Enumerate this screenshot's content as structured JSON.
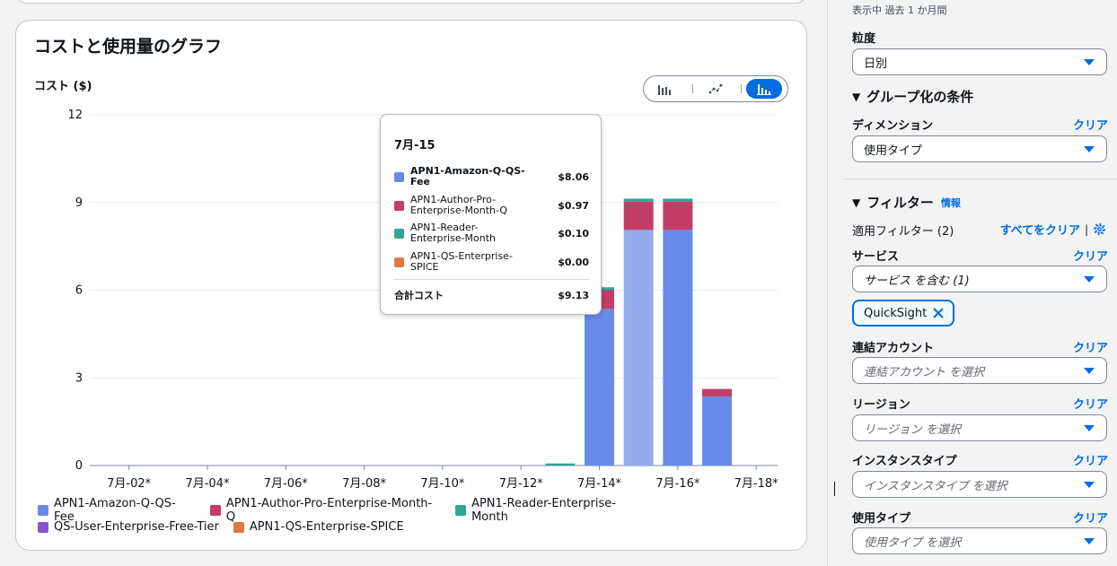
{
  "chart_card": {
    "title": "コストと使用量のグラフ",
    "ylabel": "コスト ($)"
  },
  "view_toggle": {
    "icons": [
      "bar-chart-icon",
      "line-chart-icon",
      "stacked-bar-chart-icon"
    ],
    "active": "stacked-bar-chart-icon"
  },
  "colors": {
    "amazon_q": "#688ae8",
    "amazon_q_highlight": "#94abee",
    "author_pro": "#c33d69",
    "reader": "#2ea597",
    "qs_user_free": "#8456ce",
    "spice": "#e07941",
    "grid": "#e9ebed",
    "accent": "#006ce0"
  },
  "chart_data": {
    "type": "bar",
    "stacked": true,
    "ylim": [
      0,
      12
    ],
    "yticks": [
      0,
      3,
      6,
      9,
      12
    ],
    "title": "コストと使用量のグラフ",
    "ylabel": "コスト ($)",
    "xlabel": "",
    "tick_labels": [
      "7月-02*",
      "7月-04*",
      "7月-06*",
      "7月-08*",
      "7月-10*",
      "7月-12*",
      "7月-14*",
      "7月-16*",
      "7月-18*"
    ],
    "tick_positions": [
      2,
      4,
      6,
      8,
      10,
      12,
      14,
      16,
      18
    ],
    "x_range": [
      1,
      18.5
    ],
    "highlighted_x": 15,
    "bars_x": [
      13,
      14,
      15,
      16,
      17
    ],
    "series": [
      {
        "name": "APN1-Amazon-Q-QS-Fee",
        "color_key": "amazon_q",
        "values": [
          0,
          5.36,
          8.06,
          8.06,
          2.36
        ]
      },
      {
        "name": "APN1-Author-Pro-Enterprise-Month-Q",
        "color_key": "author_pro",
        "values": [
          0,
          0.64,
          0.97,
          0.97,
          0.26
        ]
      },
      {
        "name": "APN1-Reader-Enterprise-Month",
        "color_key": "reader",
        "values": [
          0.07,
          0.1,
          0.1,
          0.1,
          0.0
        ]
      },
      {
        "name": "QS-User-Enterprise-Free-Tier",
        "color_key": "qs_user_free",
        "values": [
          0,
          0,
          0,
          0,
          0
        ]
      },
      {
        "name": "APN1-QS-Enterprise-SPICE",
        "color_key": "spice",
        "values": [
          0,
          0,
          0,
          0,
          0
        ]
      }
    ],
    "legend": [
      [
        "APN1-Amazon-Q-QS-Fee",
        "APN1-Author-Pro-Enterprise-Month-Q",
        "APN1-Reader-Enterprise-Month"
      ],
      [
        "QS-User-Enterprise-Free-Tier",
        "APN1-QS-Enterprise-SPICE"
      ]
    ],
    "legend_placement": "bottom"
  },
  "tooltip": {
    "title": "7月-15",
    "rows": [
      {
        "name": "APN1-Amazon-Q-QS-Fee",
        "value": "$8.06",
        "color_key": "amazon_q",
        "bold": true
      },
      {
        "name": "APN1-Author-Pro-Enterprise-Month-Q",
        "value": "$0.97",
        "color_key": "author_pro",
        "bold": false
      },
      {
        "name": "APN1-Reader-Enterprise-Month",
        "value": "$0.10",
        "color_key": "reader",
        "bold": false
      },
      {
        "name": "APN1-QS-Enterprise-SPICE",
        "value": "$0.00",
        "color_key": "spice",
        "bold": false
      }
    ],
    "total_label": "合計コスト",
    "total_value": "$9.13"
  },
  "panel": {
    "date_range_text": "表示中 過去 1 か月間",
    "granularity": {
      "label": "粒度",
      "value": "日別"
    },
    "group_by": {
      "heading": "グループ化の条件",
      "dimension_label": "ディメンション",
      "clear": "クリア",
      "dimension_value": "使用タイプ"
    },
    "filters": {
      "heading": "フィルター",
      "info": "情報",
      "applied": "適用フィルター (2)",
      "clear_all": "すべてをクリア",
      "service": {
        "label": "サービス",
        "clear": "クリア",
        "value": "サービス を含む (1)",
        "token": "QuickSight"
      },
      "linked_account": {
        "label": "連結アカウント",
        "clear": "クリア",
        "placeholder": "連結アカウント を選択"
      },
      "region": {
        "label": "リージョン",
        "clear": "クリア",
        "placeholder": "リージョン を選択"
      },
      "instance_type": {
        "label": "インスタンスタイプ",
        "clear": "クリア",
        "placeholder": "インスタンスタイプ を選択"
      },
      "usage_type": {
        "label": "使用タイプ",
        "clear": "クリア",
        "placeholder": "使用タイプ を選択"
      }
    }
  }
}
